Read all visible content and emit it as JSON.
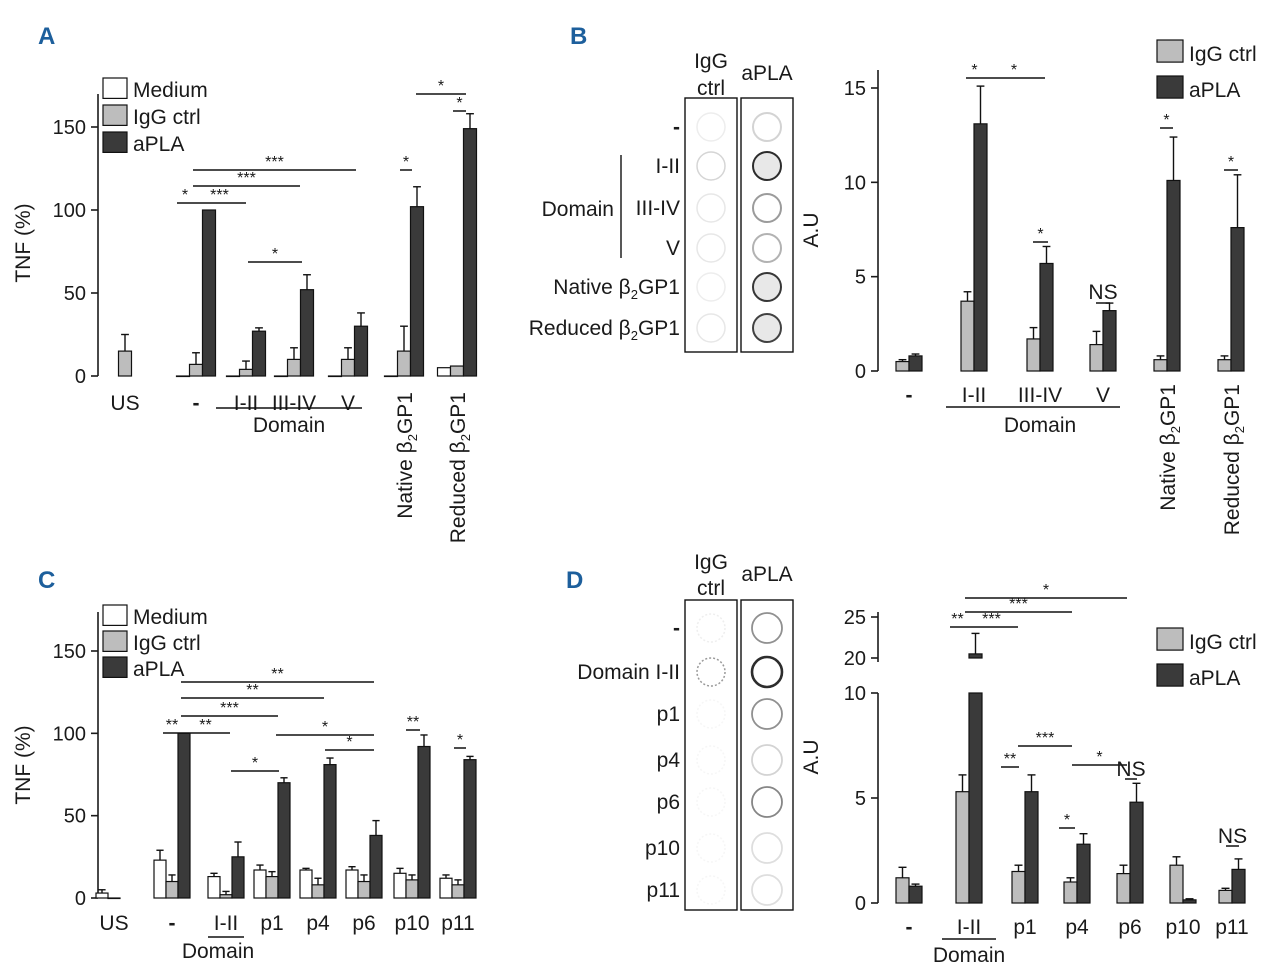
{
  "colors": {
    "medium": "#ffffff",
    "igg": "#bdbdbd",
    "apla": "#3a3a3a",
    "panel_label": "#1d5f9c",
    "axis": "#1a1a1a"
  },
  "chart_data": [
    {
      "panel": "A",
      "type": "bar",
      "ylabel": "TNF (%)",
      "ylim": [
        0,
        175
      ],
      "yticks": [
        "0",
        "50",
        "100",
        "150"
      ],
      "ytick_values": [
        0,
        50,
        100,
        150
      ],
      "categories": [
        "US",
        "-",
        "I-II",
        "III-IV",
        "V",
        "Native β2GP1",
        "Reduced β2GP1"
      ],
      "group_label": "Domain",
      "legend": [
        "Medium",
        "IgG ctrl",
        "aPLA"
      ],
      "series": [
        {
          "name": "Medium",
          "values": [
            null,
            0,
            0,
            0,
            0,
            0,
            5
          ],
          "errors": [
            null,
            0,
            0,
            0,
            0,
            0,
            0
          ]
        },
        {
          "name": "IgG ctrl",
          "values": [
            15,
            7,
            4,
            10,
            10,
            15,
            6
          ],
          "errors": [
            10,
            7,
            5,
            7,
            7,
            15,
            0
          ]
        },
        {
          "name": "aPLA",
          "values": [
            null,
            100,
            27,
            52,
            30,
            102,
            149
          ],
          "errors": [
            null,
            0,
            2,
            9,
            8,
            12,
            9
          ]
        }
      ],
      "significance": [
        "*",
        "***",
        "***",
        "***",
        "*",
        "*",
        "*",
        "*"
      ]
    },
    {
      "panel": "B",
      "type": "bar",
      "ylabel": "A.U",
      "ylim": [
        0,
        16
      ],
      "yticks": [
        "0",
        "5",
        "10",
        "15"
      ],
      "ytick_values": [
        0,
        5,
        10,
        15
      ],
      "categories": [
        "-",
        "I-II",
        "III-IV",
        "V",
        "Native β2GP1",
        "Reduced β2GP1"
      ],
      "group_label": "Domain",
      "legend": [
        "IgG ctrl",
        "aPLA"
      ],
      "series": [
        {
          "name": "IgG ctrl",
          "values": [
            0.5,
            3.7,
            1.7,
            1.4,
            0.6,
            0.6
          ],
          "errors": [
            0.1,
            0.5,
            0.6,
            0.7,
            0.2,
            0.2
          ]
        },
        {
          "name": "aPLA",
          "values": [
            0.8,
            13.1,
            5.7,
            3.2,
            10.1,
            7.6
          ],
          "errors": [
            0.1,
            2.0,
            0.9,
            0.4,
            2.3,
            2.8
          ]
        }
      ],
      "significance": [
        "*",
        "*",
        "*",
        "NS",
        "*",
        "*"
      ]
    },
    {
      "panel": "C",
      "type": "bar",
      "ylabel": "TNF (%)",
      "ylim": [
        0,
        175
      ],
      "yticks": [
        "0",
        "50",
        "100",
        "150"
      ],
      "ytick_values": [
        0,
        50,
        100,
        150
      ],
      "categories": [
        "US",
        "-",
        "I-II",
        "p1",
        "p4",
        "p6",
        "p10",
        "p11"
      ],
      "group_label": "Domain",
      "legend": [
        "Medium",
        "IgG ctrl",
        "aPLA"
      ],
      "series": [
        {
          "name": "Medium",
          "values": [
            3,
            23,
            13,
            17,
            17,
            17,
            15,
            12
          ],
          "errors": [
            2,
            6,
            2,
            3,
            1,
            2,
            3,
            2
          ]
        },
        {
          "name": "IgG ctrl",
          "values": [
            0,
            10,
            2,
            13,
            8,
            10,
            11,
            8
          ],
          "errors": [
            0,
            4,
            2,
            3,
            4,
            4,
            3,
            3
          ]
        },
        {
          "name": "aPLA",
          "values": [
            null,
            100,
            25,
            70,
            81,
            38,
            92,
            84
          ],
          "errors": [
            null,
            0,
            9,
            3,
            4,
            9,
            7,
            2
          ]
        }
      ],
      "significance": [
        "**",
        "**",
        "***",
        "**",
        "**",
        "*",
        "*",
        "*",
        "**",
        "*"
      ]
    },
    {
      "panel": "D",
      "type": "bar",
      "ylabel": "A.U",
      "ylim": [
        0,
        10
      ],
      "y_break": [
        10,
        20
      ],
      "yticks": [
        "0",
        "5",
        "10",
        "20",
        "25"
      ],
      "ytick_values": [
        0,
        5,
        10,
        20,
        25
      ],
      "categories": [
        "-",
        "I-II",
        "p1",
        "p4",
        "p6",
        "p10",
        "p11"
      ],
      "group_label": "Domain",
      "legend": [
        "IgG ctrl",
        "aPLA"
      ],
      "series": [
        {
          "name": "IgG ctrl",
          "values": [
            1.2,
            5.3,
            1.5,
            1.0,
            1.4,
            1.8,
            0.6
          ],
          "errors": [
            0.5,
            0.8,
            0.3,
            0.2,
            0.4,
            0.4,
            0.1
          ]
        },
        {
          "name": "aPLA",
          "values": [
            0.8,
            20.5,
            5.3,
            2.8,
            4.8,
            0.15,
            1.6
          ],
          "errors": [
            0.1,
            2.5,
            0.8,
            0.5,
            0.9,
            0.05,
            0.5
          ]
        }
      ],
      "significance": [
        "**",
        "***",
        "***",
        "*",
        "***",
        "**",
        "*",
        "*",
        "NS"
      ]
    }
  ],
  "blots": [
    {
      "panel": "B",
      "columns": [
        "IgG ctrl",
        "aPLA"
      ],
      "rows": [
        "-",
        "I-II",
        "III-IV",
        "V",
        "Native β2GP1",
        "Reduced β2GP1"
      ],
      "group_label": "Domain"
    },
    {
      "panel": "D",
      "columns": [
        "IgG ctrl",
        "aPLA"
      ],
      "rows": [
        "-",
        "Domain I-II",
        "p1",
        "p4",
        "p6",
        "p10",
        "p11"
      ]
    }
  ],
  "labels": {
    "A": "A",
    "B": "B",
    "C": "C",
    "D": "D"
  }
}
